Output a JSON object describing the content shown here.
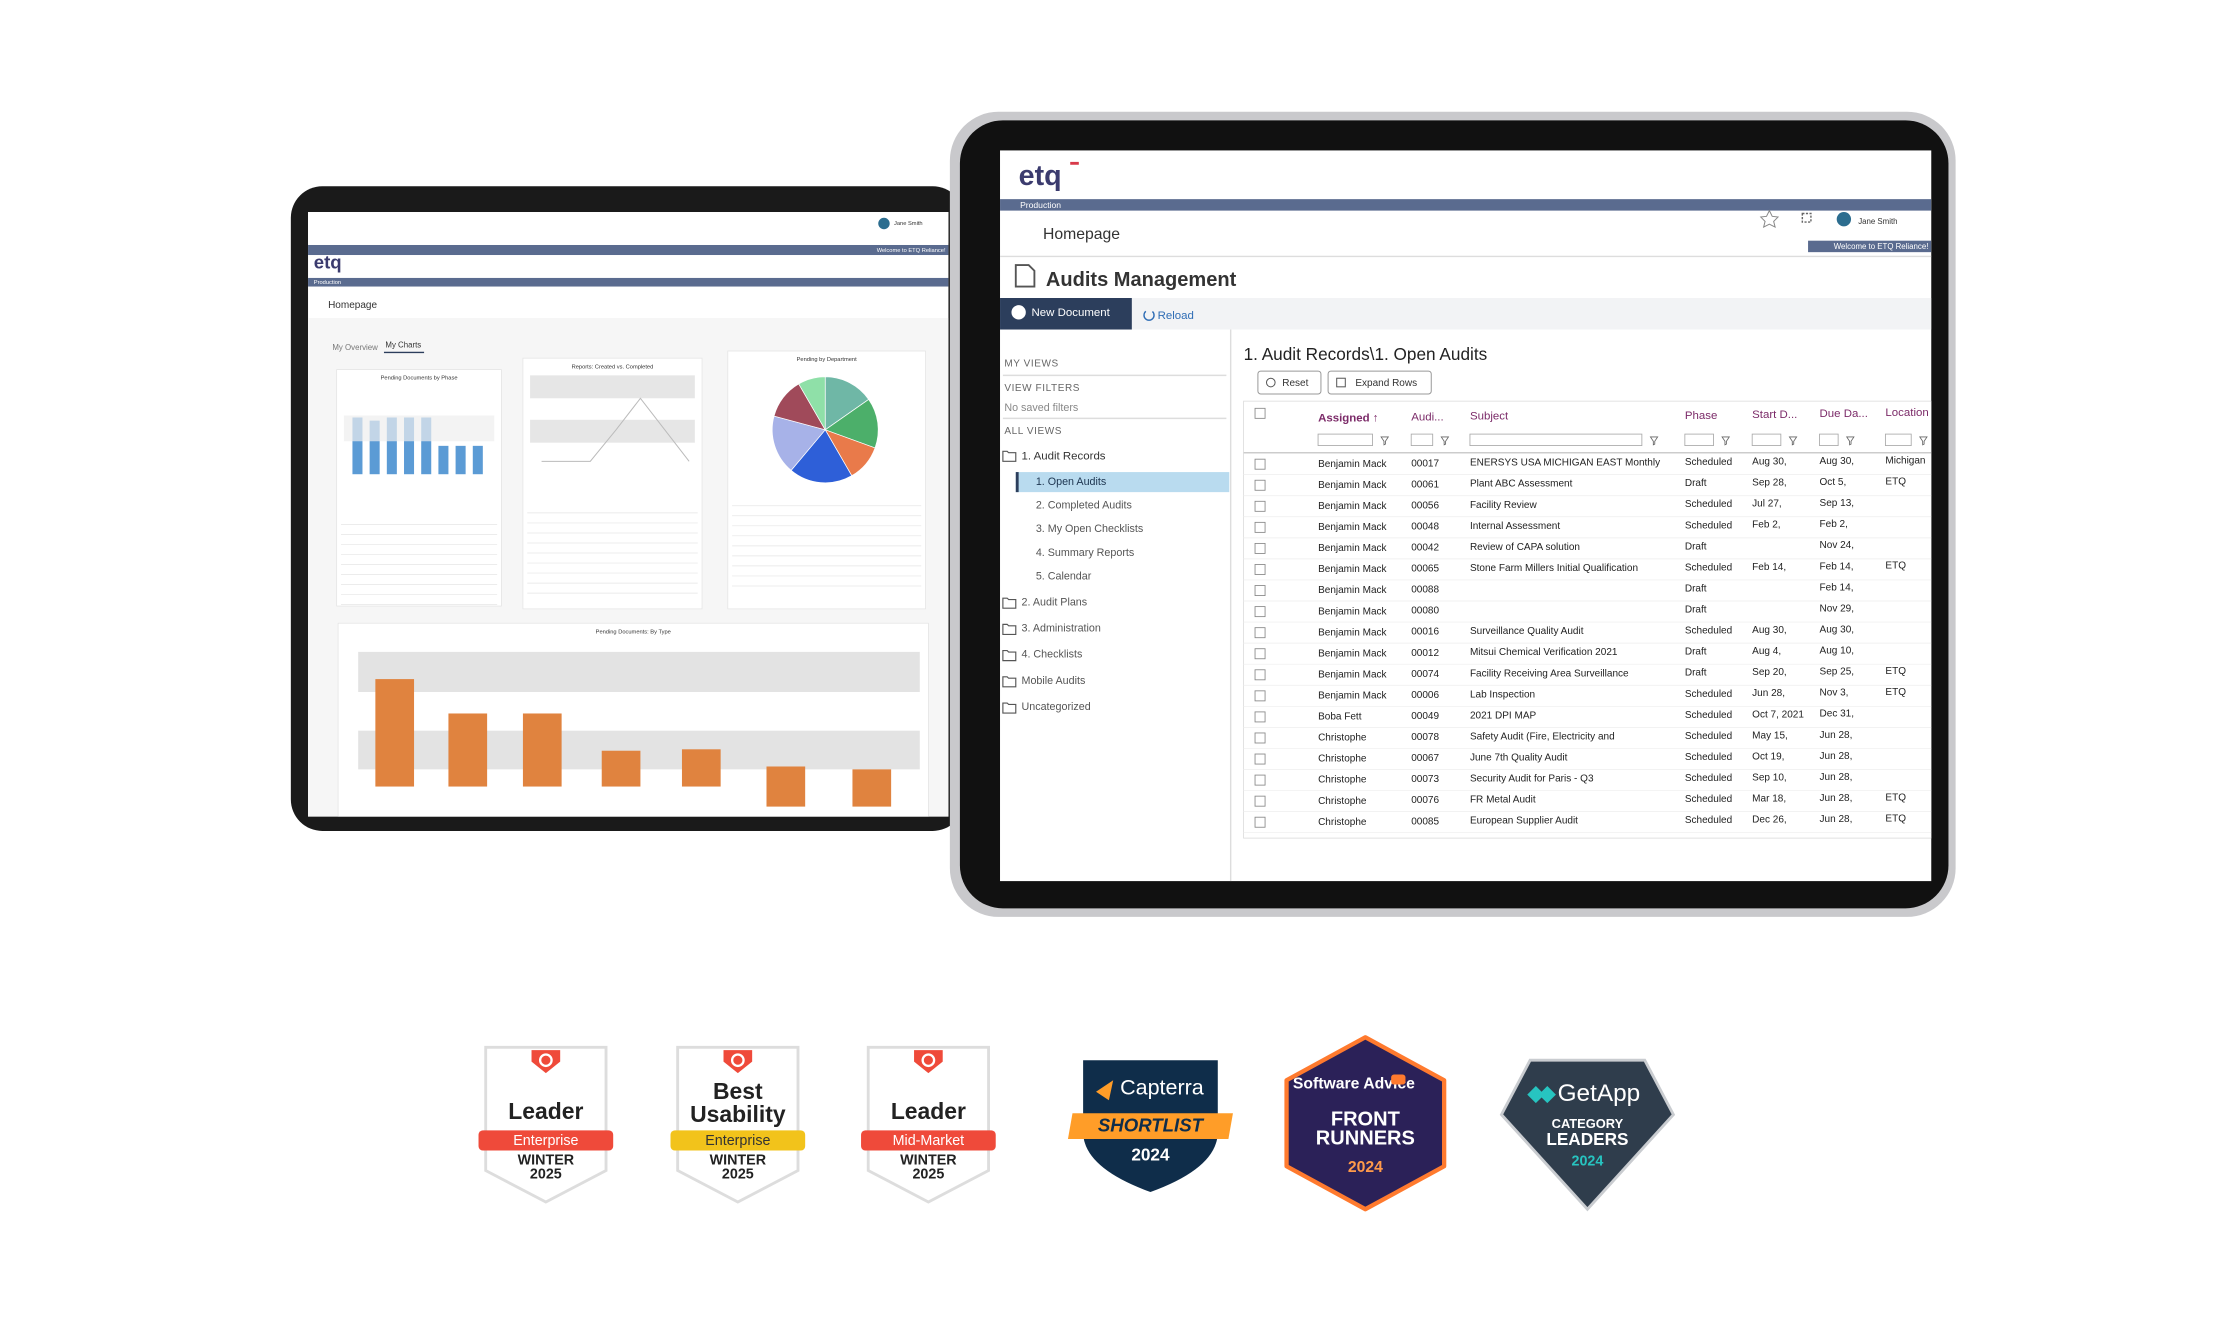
{
  "left_tablet": {
    "logo": "etq",
    "env": "Production",
    "user": "Jane Smith",
    "welcome": "Welcome to ETQ Reliance!",
    "page": "Homepage",
    "tabs": [
      "My Overview",
      "My Charts"
    ],
    "charts": [
      "Pending Documents by Phase",
      "Reports: Created vs. Completed",
      "Pending by Department",
      "Pending Documents: By Type"
    ]
  },
  "right_tablet": {
    "logo": "etq",
    "env": "Production",
    "user": "Jane Smith",
    "welcome": "Welcome to ETQ Reliance!",
    "page": "Homepage",
    "module": "Audits Management",
    "toolbar": [
      "New Document",
      "Reload"
    ],
    "sidebar": {
      "my_views": "MY VIEWS",
      "view_filters": "VIEW FILTERS",
      "no_filters": "No saved filters",
      "all_views": "ALL VIEWS",
      "root": "1. Audit Records",
      "children": [
        "1. Open Audits",
        "2. Completed Audits",
        "3. My Open Checklists",
        "4. Summary Reports",
        "5. Calendar"
      ],
      "folders": [
        "2. Audit Plans",
        "3. Administration",
        "4. Checklists",
        "Mobile Audits",
        "Uncategorized"
      ]
    },
    "grid": {
      "title": "1. Audit Records\\1. Open Audits",
      "buttons": [
        "Reset",
        "Expand Rows"
      ],
      "columns": [
        "Assigned ↑",
        "Audi...",
        "Subject",
        "Phase",
        "Start D...",
        "Due Da...",
        "Location"
      ],
      "rows": [
        {
          "assigned": "Benjamin Mack",
          "id": "00017",
          "subject": "ENERSYS USA MICHIGAN EAST Monthly",
          "phase": "Scheduled",
          "start": "Aug 30,",
          "due": "Aug 30,",
          "location": "Michigan"
        },
        {
          "assigned": "Benjamin Mack",
          "id": "00061",
          "subject": "Plant ABC Assessment",
          "phase": "Draft",
          "start": "Sep 28,",
          "due": "Oct 5,",
          "location": "ETQ"
        },
        {
          "assigned": "Benjamin Mack",
          "id": "00056",
          "subject": "Facility Review",
          "phase": "Scheduled",
          "start": "Jul 27,",
          "due": "Sep 13,"
        },
        {
          "assigned": "Benjamin Mack",
          "id": "00048",
          "subject": "Internal Assessment",
          "phase": "Scheduled",
          "start": "Feb 2,",
          "due": "Feb 2,"
        },
        {
          "assigned": "Benjamin Mack",
          "id": "00042",
          "subject": "Review of CAPA solution",
          "phase": "Draft",
          "due": "Nov 24,"
        },
        {
          "assigned": "Benjamin Mack",
          "id": "00065",
          "subject": "Stone Farm Millers Initial Qualification",
          "phase": "Scheduled",
          "start": "Feb 14,",
          "due": "Feb 14,",
          "location": "ETQ"
        },
        {
          "assigned": "Benjamin Mack",
          "id": "00088",
          "phase": "Draft",
          "due": "Feb 14,"
        },
        {
          "assigned": "Benjamin Mack",
          "id": "00080",
          "phase": "Draft",
          "due": "Nov 29,"
        },
        {
          "assigned": "Benjamin Mack",
          "id": "00016",
          "subject": "Surveillance Quality Audit",
          "phase": "Scheduled",
          "start": "Aug 30,",
          "due": "Aug 30,"
        },
        {
          "assigned": "Benjamin Mack",
          "id": "00012",
          "subject": "Mitsui Chemical Verification 2021",
          "phase": "Draft",
          "start": "Aug 4,",
          "due": "Aug 10,"
        },
        {
          "assigned": "Benjamin Mack",
          "id": "00074",
          "subject": "Facility Receiving Area Surveillance",
          "phase": "Draft",
          "start": "Sep 20,",
          "due": "Sep 25,",
          "location": "ETQ"
        },
        {
          "assigned": "Benjamin Mack",
          "id": "00006",
          "subject": "Lab Inspection",
          "phase": "Scheduled",
          "start": "Jun 28,",
          "due": "Nov 3,",
          "location": "ETQ"
        },
        {
          "assigned": "Boba Fett",
          "id": "00049",
          "subject": "2021 DPI MAP",
          "phase": "Scheduled",
          "start": "Oct 7, 2021",
          "due": "Dec 31,"
        },
        {
          "assigned": "Christophe",
          "id": "00078",
          "subject": "Safety Audit (Fire, Electricity and",
          "phase": "Scheduled",
          "start": "May 15,",
          "due": "Jun 28,"
        },
        {
          "assigned": "Christophe",
          "id": "00067",
          "subject": "June 7th Quality Audit",
          "phase": "Scheduled",
          "start": "Oct 19,",
          "due": "Jun 28,"
        },
        {
          "assigned": "Christophe",
          "id": "00073",
          "subject": "Security Audit for Paris - Q3",
          "phase": "Scheduled",
          "start": "Sep 10,",
          "due": "Jun 28,"
        },
        {
          "assigned": "Christophe",
          "id": "00076",
          "subject": "FR Metal Audit",
          "phase": "Scheduled",
          "start": "Mar 18,",
          "due": "Jun 28,",
          "location": "ETQ"
        },
        {
          "assigned": "Christophe",
          "id": "00085",
          "subject": "European Supplier Audit",
          "phase": "Scheduled",
          "start": "Dec 26,",
          "due": "Jun 28,",
          "location": "ETQ"
        }
      ]
    }
  },
  "badges": [
    {
      "title": [
        "Leader"
      ],
      "ribbon": "Enterprise",
      "season": [
        "WINTER",
        "2025"
      ]
    },
    {
      "title": [
        "Best",
        "Usability"
      ],
      "ribbon": "Enterprise",
      "season": [
        "WINTER",
        "2025"
      ]
    },
    {
      "title": [
        "Leader"
      ],
      "ribbon": "Mid-Market",
      "season": [
        "WINTER",
        "2025"
      ]
    },
    {
      "brand": "Capterra",
      "title": [
        "SHORTLIST"
      ],
      "year": "2024"
    },
    {
      "brand": "Software Advice",
      "title": [
        "FRONT",
        "RUNNERS"
      ],
      "year": "2024"
    },
    {
      "brand": "GetApp",
      "title": [
        "CATEGORY",
        "LEADERS"
      ],
      "year": "2024"
    }
  ]
}
